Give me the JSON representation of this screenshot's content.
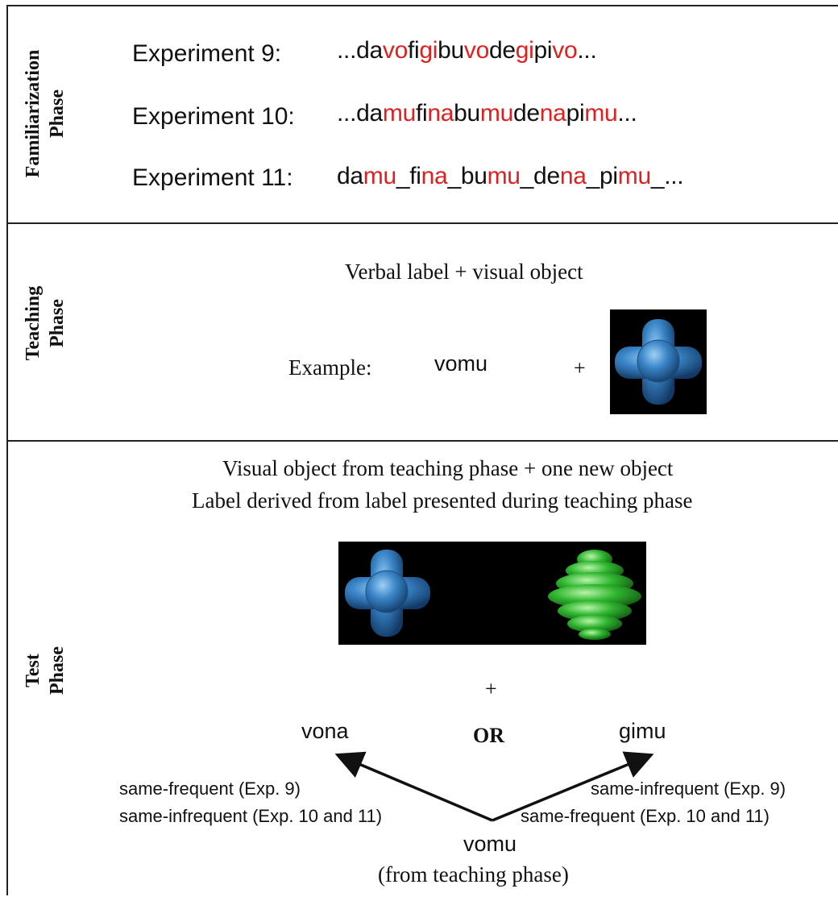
{
  "familiarization": {
    "side_label": [
      "Familiarization",
      "Phase"
    ],
    "rows": [
      {
        "label": "Experiment 9:",
        "segments": [
          {
            "t": "...da",
            "h": false
          },
          {
            "t": "vo",
            "h": true
          },
          {
            "t": "fi",
            "h": false
          },
          {
            "t": "gi",
            "h": true
          },
          {
            "t": "bu",
            "h": false
          },
          {
            "t": "vo",
            "h": true
          },
          {
            "t": "de",
            "h": false
          },
          {
            "t": "gi",
            "h": true
          },
          {
            "t": "pi",
            "h": false
          },
          {
            "t": "vo",
            "h": true
          },
          {
            "t": "...",
            "h": false
          }
        ]
      },
      {
        "label": "Experiment 10:",
        "segments": [
          {
            "t": "...da",
            "h": false
          },
          {
            "t": "mu",
            "h": true
          },
          {
            "t": "fi",
            "h": false
          },
          {
            "t": "na",
            "h": true
          },
          {
            "t": "bu",
            "h": false
          },
          {
            "t": "mu",
            "h": true
          },
          {
            "t": "de",
            "h": false
          },
          {
            "t": "na",
            "h": true
          },
          {
            "t": "pi",
            "h": false
          },
          {
            "t": "mu",
            "h": true
          },
          {
            "t": "...",
            "h": false
          }
        ]
      },
      {
        "label": "Experiment 11:",
        "segments": [
          {
            "t": "da",
            "h": false
          },
          {
            "t": "mu",
            "h": true
          },
          {
            "t": "_fi",
            "h": false
          },
          {
            "t": "na",
            "h": true
          },
          {
            "t": "_bu",
            "h": false
          },
          {
            "t": "mu",
            "h": true
          },
          {
            "t": "_de",
            "h": false
          },
          {
            "t": "na",
            "h": true
          },
          {
            "t": "_pi",
            "h": false
          },
          {
            "t": "mu",
            "h": true
          },
          {
            "t": "_...",
            "h": false
          }
        ]
      }
    ]
  },
  "teaching": {
    "side_label": [
      "Teaching",
      "Phase"
    ],
    "caption": "Verbal label + visual object",
    "example_label": "Example:",
    "word": "vomu",
    "plus": "+"
  },
  "test": {
    "side_label": [
      "Test",
      "Phase"
    ],
    "caption_line1": "Visual object from teaching phase + one new object",
    "caption_line2": "Label derived from label presented during teaching phase",
    "plus": "+",
    "left_word": "vona",
    "or_label": "OR",
    "right_word": "gimu",
    "left_cond_1": "same-frequent (Exp. 9)",
    "left_cond_2": "same-infrequent (Exp. 10 and 11)",
    "right_cond_1": "same-infrequent (Exp. 9)",
    "right_cond_2": "same-frequent (Exp. 10 and 11)",
    "origin_word": "vomu",
    "origin_note": "(from teaching phase)"
  },
  "colors": {
    "highlight": "#e02020",
    "object_blue": "#3a86c8",
    "object_green": "#2fb52f",
    "background_panel": "#000000"
  }
}
